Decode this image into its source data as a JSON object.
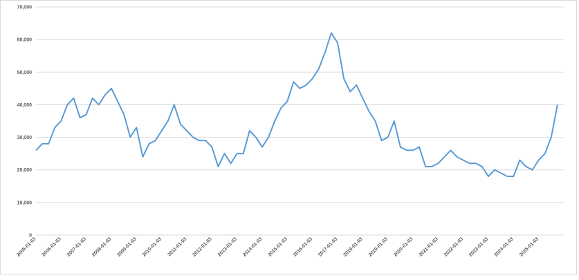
{
  "chart_data": {
    "type": "line",
    "categories": [
      "2005-01-03",
      null,
      null,
      null,
      "2006-01-03",
      null,
      null,
      null,
      "2007-01-03",
      null,
      null,
      null,
      "2008-01-03",
      null,
      null,
      null,
      "2009-01-03",
      null,
      null,
      null,
      "2010-01-03",
      null,
      null,
      null,
      "2011-01-03",
      null,
      null,
      null,
      "2012-01-03",
      null,
      null,
      null,
      "2013-01-03",
      null,
      null,
      null,
      "2014-01-03",
      null,
      null,
      null,
      "2015-01-03",
      null,
      null,
      null,
      "2016-01-03",
      null,
      null,
      null,
      "2017-01-03",
      null,
      null,
      null,
      "2018-01-03",
      null,
      null,
      null,
      "2019-01-03",
      null,
      null,
      null,
      "2020-01-03",
      null,
      null,
      null,
      "2021-01-03",
      null,
      null,
      null,
      "2022-01-03",
      null,
      null,
      null,
      "2023-01-03",
      null,
      null,
      null,
      "2024-01-03",
      null,
      null,
      null,
      "2025-01-03",
      null,
      null,
      null
    ],
    "values": [
      26000,
      28000,
      28000,
      33000,
      35000,
      40000,
      42000,
      36000,
      37000,
      42000,
      40000,
      43000,
      45000,
      41000,
      37000,
      30000,
      33000,
      24000,
      28000,
      29000,
      32000,
      35000,
      40000,
      34000,
      32000,
      30000,
      29000,
      29000,
      27000,
      21000,
      25000,
      22000,
      25000,
      25000,
      32000,
      30000,
      27000,
      30000,
      35000,
      39000,
      41000,
      47000,
      45000,
      46000,
      48000,
      51000,
      56000,
      62000,
      59000,
      48000,
      44000,
      46000,
      42000,
      38000,
      35000,
      29000,
      30000,
      35000,
      27000,
      26000,
      26000,
      27000,
      21000,
      21000,
      22000,
      24000,
      26000,
      24000,
      23000,
      22000,
      22000,
      21000,
      18000,
      20000,
      19000,
      18000,
      18000,
      23000,
      21000,
      20000,
      23000,
      25000,
      30000,
      40000
    ],
    "color": "#5b9bd5",
    "ylim": [
      0,
      70000
    ],
    "yticks": [
      0,
      {
        "value": 10000,
        "label": "10,000"
      },
      {
        "value": 20000,
        "label": "20,000"
      },
      {
        "value": 30000,
        "label": "30,000"
      },
      {
        "value": 40000,
        "label": "40,000"
      },
      {
        "value": 50000,
        "label": "50,000"
      },
      {
        "value": 60000,
        "label": "60,000"
      },
      {
        "value": 70000,
        "label": "70,000"
      }
    ],
    "grid": true
  }
}
